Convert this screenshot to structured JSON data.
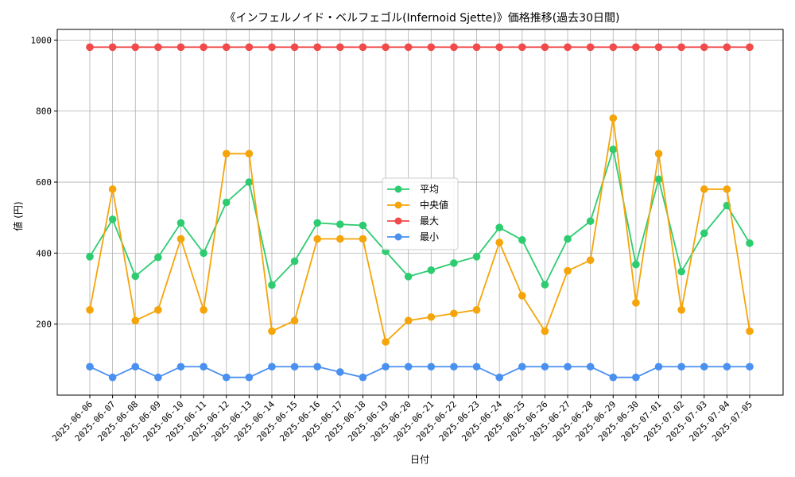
{
  "chart_data": {
    "type": "line",
    "title": "《インフェルノイド・ベルフェゴル(Infernoid Sjette)》価格推移(過去30日間)",
    "xlabel": "日付",
    "ylabel": "値 (円)",
    "ylim": [
      0,
      1030
    ],
    "yticks": [
      200,
      400,
      600,
      800,
      1000
    ],
    "grid": true,
    "legend_position": "center",
    "categories": [
      "2025-06-06",
      "2025-06-07",
      "2025-06-08",
      "2025-06-09",
      "2025-06-10",
      "2025-06-11",
      "2025-06-12",
      "2025-06-13",
      "2025-06-14",
      "2025-06-15",
      "2025-06-16",
      "2025-06-17",
      "2025-06-18",
      "2025-06-19",
      "2025-06-20",
      "2025-06-21",
      "2025-06-22",
      "2025-06-23",
      "2025-06-24",
      "2025-06-25",
      "2025-06-26",
      "2025-06-27",
      "2025-06-28",
      "2025-06-29",
      "2025-06-30",
      "2025-07-01",
      "2025-07-02",
      "2025-07-03",
      "2025-07-04",
      "2025-07-05"
    ],
    "series": [
      {
        "name": "平均",
        "color": "#2ecc71",
        "values": [
          390,
          495,
          335,
          388,
          485,
          400,
          543,
          600,
          310,
          377,
          485,
          481,
          478,
          405,
          334,
          352,
          372,
          390,
          472,
          437,
          311,
          440,
          490,
          692,
          368,
          608,
          348,
          456,
          534,
          428
        ]
      },
      {
        "name": "中央値",
        "color": "#f5a50a",
        "values": [
          240,
          580,
          210,
          240,
          440,
          240,
          680,
          680,
          180,
          210,
          440,
          440,
          440,
          150,
          210,
          220,
          230,
          240,
          430,
          280,
          180,
          350,
          380,
          780,
          260,
          680,
          240,
          580,
          580,
          180
        ]
      },
      {
        "name": "最大",
        "color": "#f04a4a",
        "values": [
          980,
          980,
          980,
          980,
          980,
          980,
          980,
          980,
          980,
          980,
          980,
          980,
          980,
          980,
          980,
          980,
          980,
          980,
          980,
          980,
          980,
          980,
          980,
          980,
          980,
          980,
          980,
          980,
          980,
          980
        ]
      },
      {
        "name": "最小",
        "color": "#4a90f0",
        "values": [
          80,
          50,
          80,
          50,
          80,
          80,
          50,
          50,
          80,
          80,
          80,
          65,
          50,
          80,
          80,
          80,
          80,
          80,
          50,
          80,
          80,
          80,
          80,
          50,
          50,
          80,
          80,
          80,
          80,
          80
        ]
      }
    ]
  }
}
